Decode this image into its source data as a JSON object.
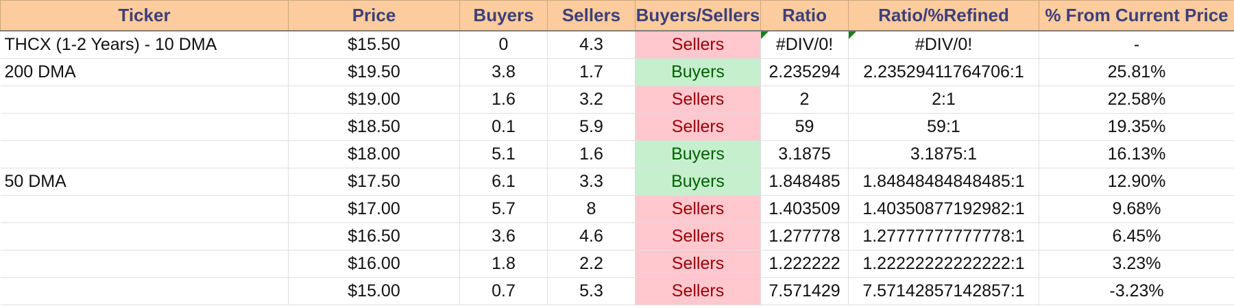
{
  "headers": [
    "Ticker",
    "Price",
    "Buyers",
    "Sellers",
    "Buyers/Sellers",
    "Ratio",
    "Ratio/%Refined",
    "% From Current Price"
  ],
  "rows": [
    {
      "ticker": "THCX (1-2 Years) - 10 DMA",
      "price": "$15.50",
      "buyers": "0",
      "sellers": "4.3",
      "side": "Sellers",
      "ratio": "#DIV/0!",
      "refined": "#DIV/0!",
      "pct": "-",
      "error_flag": true
    },
    {
      "ticker": "200 DMA",
      "price": "$19.50",
      "buyers": "3.8",
      "sellers": "1.7",
      "side": "Buyers",
      "ratio": "2.235294",
      "refined": "2.23529411764706:1",
      "pct": "25.81%"
    },
    {
      "ticker": "",
      "price": "$19.00",
      "buyers": "1.6",
      "sellers": "3.2",
      "side": "Sellers",
      "ratio": "2",
      "refined": "2:1",
      "pct": "22.58%"
    },
    {
      "ticker": "",
      "price": "$18.50",
      "buyers": "0.1",
      "sellers": "5.9",
      "side": "Sellers",
      "ratio": "59",
      "refined": "59:1",
      "pct": "19.35%"
    },
    {
      "ticker": "",
      "price": "$18.00",
      "buyers": "5.1",
      "sellers": "1.6",
      "side": "Buyers",
      "ratio": "3.1875",
      "refined": "3.1875:1",
      "pct": "16.13%"
    },
    {
      "ticker": "50 DMA",
      "price": "$17.50",
      "buyers": "6.1",
      "sellers": "3.3",
      "side": "Buyers",
      "ratio": "1.848485",
      "refined": "1.84848484848485:1",
      "pct": "12.90%"
    },
    {
      "ticker": "",
      "price": "$17.00",
      "buyers": "5.7",
      "sellers": "8",
      "side": "Sellers",
      "ratio": "1.403509",
      "refined": "1.40350877192982:1",
      "pct": "9.68%"
    },
    {
      "ticker": "",
      "price": "$16.50",
      "buyers": "3.6",
      "sellers": "4.6",
      "side": "Sellers",
      "ratio": "1.277778",
      "refined": "1.27777777777778:1",
      "pct": "6.45%"
    },
    {
      "ticker": "",
      "price": "$16.00",
      "buyers": "1.8",
      "sellers": "2.2",
      "side": "Sellers",
      "ratio": "1.222222",
      "refined": "1.22222222222222:1",
      "pct": "3.23%"
    },
    {
      "ticker": "",
      "price": "$15.00",
      "buyers": "0.7",
      "sellers": "5.3",
      "side": "Sellers",
      "ratio": "7.571429",
      "refined": "7.57142857142857:1",
      "pct": "-3.23%"
    }
  ],
  "colors": {
    "header_bg": "#fdcc9e",
    "header_text": "#3d3f7a",
    "sellers_bg": "#ffc7ce",
    "sellers_text": "#9c0006",
    "buyers_bg": "#c6efce",
    "buyers_text": "#006100",
    "error_flag": "#1e7b1e"
  }
}
